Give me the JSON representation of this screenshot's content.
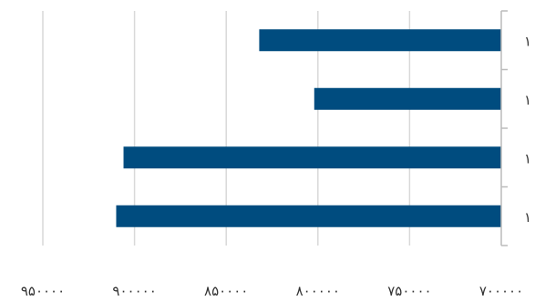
{
  "chart_data": {
    "type": "bar",
    "orientation": "horizontal",
    "x_direction": "reversed",
    "y_axis_side": "right",
    "categories": [
      "۱",
      "۱",
      "۱",
      "۱"
    ],
    "values": [
      832000,
      802000,
      906000,
      910000
    ],
    "xlim": [
      700000,
      950000
    ],
    "x_ticks": [
      950000,
      900000,
      850000,
      800000,
      750000,
      700000
    ],
    "x_tick_labels": [
      "۹۵۰۰۰۰",
      "۹۰۰۰۰۰",
      "۸۵۰۰۰۰",
      "۸۰۰۰۰۰",
      "۷۵۰۰۰۰",
      "۷۰۰۰۰۰"
    ],
    "grid": true,
    "colors": {
      "bar": "#004c7f",
      "grid": "#d9d9d9",
      "axis": "#bbbbbb"
    }
  }
}
